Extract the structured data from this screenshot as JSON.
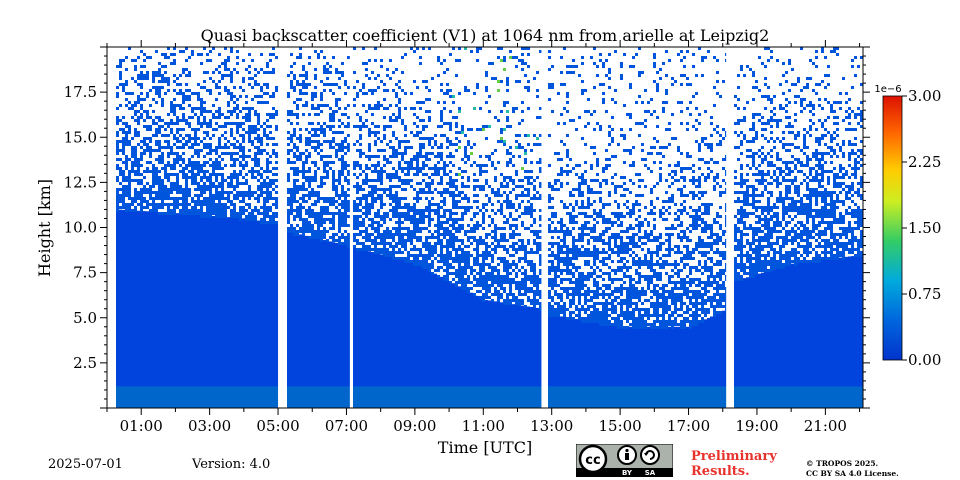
{
  "chart_data": {
    "type": "heatmap",
    "title": "Quasi backscatter coefficient (V1) at 1064 nm from arielle at Leipzig2",
    "xlabel": "Time [UTC]",
    "ylabel": "Height [km]",
    "x_tick_labels": [
      "01:00",
      "03:00",
      "05:00",
      "07:00",
      "09:00",
      "11:00",
      "13:00",
      "15:00",
      "17:00",
      "19:00",
      "21:00"
    ],
    "x_tick_hours": [
      1,
      3,
      5,
      7,
      9,
      11,
      13,
      15,
      17,
      19,
      21
    ],
    "xlim_hours": [
      0,
      22.1
    ],
    "y_tick_labels": [
      "2.5",
      "5.0",
      "7.5",
      "10.0",
      "12.5",
      "15.0",
      "17.5"
    ],
    "y_tick_values": [
      2.5,
      5.0,
      7.5,
      10.0,
      12.5,
      15.0,
      17.5
    ],
    "ylim_km": [
      0,
      20
    ],
    "colorbar": {
      "exponent_label": "1e−6",
      "tick_labels": [
        "0.00",
        "0.75",
        "1.50",
        "2.25",
        "3.00"
      ],
      "tick_values": [
        0,
        0.75,
        1.5,
        2.25,
        3.0
      ],
      "range": [
        0,
        3.0
      ],
      "colormap": [
        "#0033cc",
        "#0066dd",
        "#00aadd",
        "#33cc66",
        "#ccee22",
        "#ffcc00",
        "#ff6600",
        "#dd1100"
      ]
    },
    "data_gaps_hours": [
      [
        0,
        0.25
      ],
      [
        5.0,
        5.2
      ],
      [
        7.1,
        7.15
      ],
      [
        12.7,
        12.85
      ],
      [
        18.1,
        18.25
      ]
    ],
    "background_color": "#0044dd",
    "near_surface_color": "#0066cc",
    "sparse_aerosol_top_km": [
      [
        0.25,
        11.0
      ],
      [
        2,
        10.8
      ],
      [
        4,
        10.5
      ],
      [
        5,
        10.2
      ],
      [
        5.2,
        9.8
      ],
      [
        7,
        9.0
      ],
      [
        9,
        8.0
      ],
      [
        11,
        6.0
      ],
      [
        12.7,
        5.5
      ],
      [
        12.85,
        5.2
      ],
      [
        15,
        4.5
      ],
      [
        17,
        4.5
      ],
      [
        18.1,
        5.5
      ],
      [
        18.25,
        7.0
      ],
      [
        20,
        8.0
      ],
      [
        22.1,
        8.5
      ]
    ]
  },
  "footer": {
    "date": "2025-07-01",
    "version": "Version: 4.0",
    "preliminary_line1": "Preliminary",
    "preliminary_line2": "Results.",
    "copyright_line1": "© TROPOS 2025.",
    "copyright_line2": "CC BY SA 4.0 License.",
    "cc_badge_labels": [
      "BY",
      "SA"
    ]
  }
}
